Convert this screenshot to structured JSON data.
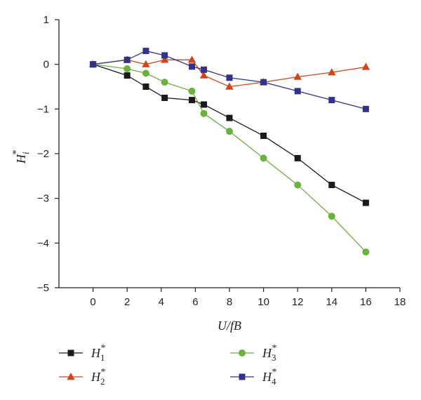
{
  "chart_data": {
    "type": "line",
    "xlabel": "U/fB",
    "ylabel": "H_i^*",
    "ylabel_parts": {
      "base": "H",
      "sub": "i",
      "sup": "*"
    },
    "xlim": [
      -2,
      18
    ],
    "ylim": [
      -5,
      1
    ],
    "xticks": [
      0,
      2,
      4,
      6,
      8,
      10,
      12,
      14,
      16,
      18
    ],
    "yticks": [
      1,
      0,
      -1,
      -2,
      -3,
      -4,
      -5
    ],
    "ytick_labels": [
      "1",
      "0",
      "−1",
      "−2",
      "−3",
      "−4",
      "−5"
    ],
    "grid": false,
    "legend_position": "bottom",
    "series": [
      {
        "name": "H_1^*",
        "label_base": "H",
        "label_sub": "1",
        "label_sup": "*",
        "color": "#1a1a1a",
        "marker": "square",
        "x": [
          0,
          2,
          3.1,
          4.2,
          5.8,
          6.5,
          8,
          10,
          12,
          14,
          16
        ],
        "y": [
          0,
          -0.25,
          -0.5,
          -0.75,
          -0.8,
          -0.9,
          -1.2,
          -1.6,
          -2.1,
          -2.7,
          -3.1
        ]
      },
      {
        "name": "H_2^*",
        "label_base": "H",
        "label_sub": "2",
        "label_sup": "*",
        "color": "#d0451b",
        "marker": "triangle",
        "x": [
          0,
          2,
          3.1,
          4.2,
          5.8,
          6.5,
          8,
          10,
          12,
          14,
          16
        ],
        "y": [
          0,
          0.1,
          0,
          0.1,
          0.1,
          -0.25,
          -0.5,
          -0.4,
          -0.28,
          -0.18,
          -0.06
        ]
      },
      {
        "name": "H_3^*",
        "label_base": "H",
        "label_sub": "3",
        "label_sup": "*",
        "color": "#6ab23d",
        "marker": "circle",
        "x": [
          0,
          2,
          3.1,
          4.2,
          5.8,
          6.5,
          8,
          10,
          12,
          14,
          16
        ],
        "y": [
          0,
          -0.1,
          -0.2,
          -0.4,
          -0.6,
          -1.1,
          -1.5,
          -2.1,
          -2.7,
          -3.4,
          -4.2
        ]
      },
      {
        "name": "H_4^*",
        "label_base": "H",
        "label_sub": "4",
        "label_sup": "*",
        "color": "#33318a",
        "marker": "square",
        "x": [
          0,
          2,
          3.1,
          4.2,
          5.8,
          6.5,
          8,
          10,
          12,
          14,
          16
        ],
        "y": [
          0,
          0.1,
          0.3,
          0.2,
          -0.05,
          -0.12,
          -0.3,
          -0.4,
          -0.6,
          -0.8,
          -1.0
        ]
      }
    ]
  }
}
